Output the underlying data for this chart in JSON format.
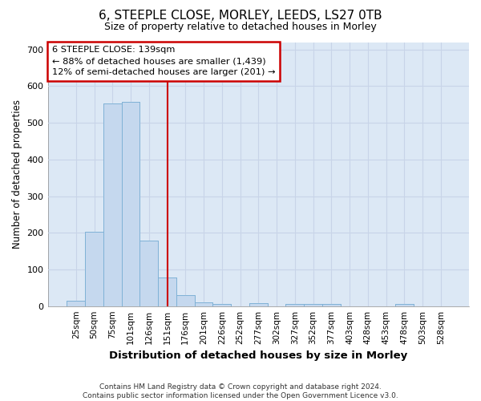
{
  "title_line1": "6, STEEPLE CLOSE, MORLEY, LEEDS, LS27 0TB",
  "title_line2": "Size of property relative to detached houses in Morley",
  "xlabel": "Distribution of detached houses by size in Morley",
  "ylabel": "Number of detached properties",
  "bar_color": "#c5d8ee",
  "bar_edge_color": "#7aafd4",
  "grid_color": "#c8d4e8",
  "background_color": "#dce8f5",
  "vline_color": "#cc0000",
  "annotation_text": "6 STEEPLE CLOSE: 139sqm\n← 88% of detached houses are smaller (1,439)\n12% of semi-detached houses are larger (201) →",
  "annotation_box_color": "#ffffff",
  "annotation_border_color": "#cc0000",
  "categories": [
    "25sqm",
    "50sqm",
    "75sqm",
    "101sqm",
    "126sqm",
    "151sqm",
    "176sqm",
    "201sqm",
    "226sqm",
    "252sqm",
    "277sqm",
    "302sqm",
    "327sqm",
    "352sqm",
    "377sqm",
    "403sqm",
    "428sqm",
    "453sqm",
    "478sqm",
    "503sqm",
    "528sqm"
  ],
  "values": [
    14,
    203,
    553,
    557,
    178,
    77,
    30,
    11,
    5,
    0,
    8,
    0,
    5,
    5,
    5,
    0,
    0,
    0,
    5,
    0,
    0
  ],
  "ylim": [
    0,
    720
  ],
  "yticks": [
    0,
    100,
    200,
    300,
    400,
    500,
    600,
    700
  ],
  "footnote": "Contains HM Land Registry data © Crown copyright and database right 2024.\nContains public sector information licensed under the Open Government Licence v3.0.",
  "fig_width": 6.0,
  "fig_height": 5.0,
  "dpi": 100
}
